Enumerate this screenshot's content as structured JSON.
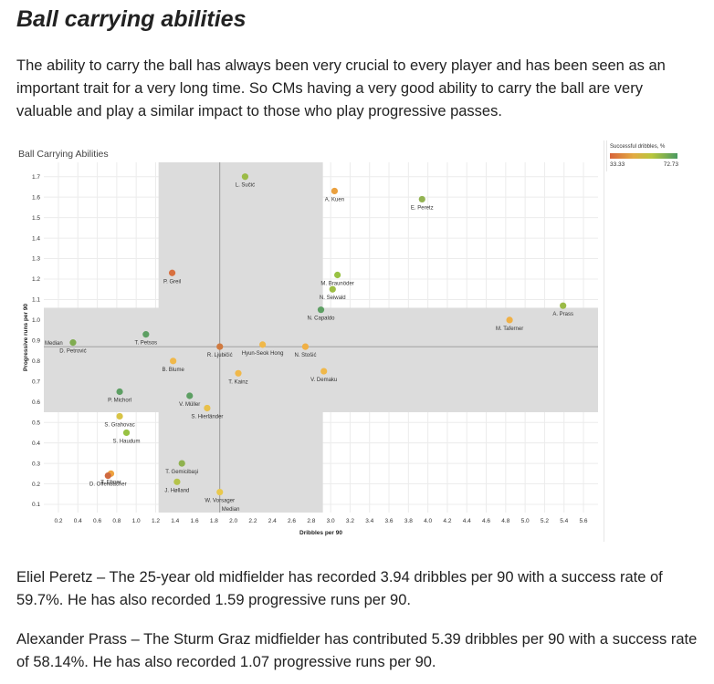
{
  "article": {
    "heading": "Ball carrying abilities",
    "intro": "The ability to carry the ball has always been very crucial to every player and has been seen as an important trait for a very long time. So CMs having a very good ability to carry the ball are very valuable and play a similar impact to those who play progressive passes.",
    "paragraphs": [
      "Eliel Peretz – The 25-year old midfielder has recorded 3.94 dribbles per 90 with a success rate of 59.7%. He has also recorded 1.59 progressive runs per 90.",
      "Alexander Prass – The Sturm Graz midfielder has contributed 5.39 dribbles per 90 with a success rate of 58.14%. He has also recorded 1.07 progressive runs per 90."
    ]
  },
  "legend": {
    "title": "Successful dribbles, %",
    "min_label": "33.33",
    "max_label": "72.73"
  },
  "colors": {
    "low": "#d8643a",
    "mid_low": "#e3ab42",
    "mid_high": "#b8c63d",
    "high": "#4a9a62",
    "band": "#dcdcdc",
    "grid": "#ececec"
  },
  "chart_data": {
    "type": "scatter",
    "title": "Ball Carrying Abilities",
    "xlabel": "Dribbles per 90",
    "ylabel": "Progressive runs per 90",
    "xlim": [
      0.05,
      5.75
    ],
    "ylim": [
      0.06,
      1.77
    ],
    "xticks": [
      0.2,
      0.4,
      0.6,
      0.8,
      1.0,
      1.2,
      1.4,
      1.6,
      1.8,
      2.0,
      2.2,
      2.4,
      2.6,
      2.8,
      3.0,
      3.2,
      3.4,
      3.6,
      3.8,
      4.0,
      4.2,
      4.4,
      4.6,
      4.8,
      5.0,
      5.2,
      5.4,
      5.6
    ],
    "yticks": [
      0.1,
      0.2,
      0.3,
      0.4,
      0.5,
      0.6,
      0.7,
      0.8,
      0.9,
      1.0,
      1.1,
      1.2,
      1.3,
      1.4,
      1.5,
      1.6,
      1.7
    ],
    "median_x": 1.86,
    "median_y": 0.87,
    "median_x_label": "Median",
    "median_y_label": "Median",
    "x_band": [
      1.23,
      2.92
    ],
    "y_band": [
      0.55,
      1.06
    ],
    "grid": true,
    "legend_position": "top-right",
    "points": [
      {
        "label": "L. Sučić",
        "x": 2.12,
        "y": 1.7,
        "success_pct": 62,
        "color": "#9bbb47"
      },
      {
        "label": "A. Kuen",
        "x": 3.04,
        "y": 1.63,
        "success_pct": 50,
        "color": "#eaa03e"
      },
      {
        "label": "E. Peretz",
        "x": 3.94,
        "y": 1.59,
        "success_pct": 59.7,
        "color": "#93b352"
      },
      {
        "label": "M. Braunöder",
        "x": 3.07,
        "y": 1.22,
        "success_pct": 62,
        "color": "#98c243"
      },
      {
        "label": "P. Greil",
        "x": 1.37,
        "y": 1.23,
        "success_pct": 40,
        "color": "#d8703f"
      },
      {
        "label": "N. Seiwald",
        "x": 3.02,
        "y": 1.15,
        "success_pct": 62,
        "color": "#9ebe45"
      },
      {
        "label": "N. Capaldo",
        "x": 2.9,
        "y": 1.05,
        "success_pct": 70,
        "color": "#5d9f63"
      },
      {
        "label": "A. Prass",
        "x": 5.39,
        "y": 1.07,
        "success_pct": 58.14,
        "color": "#9bbb47"
      },
      {
        "label": "M. Taferner",
        "x": 4.84,
        "y": 1.0,
        "success_pct": 50,
        "color": "#f0b045"
      },
      {
        "label": "D. Petrović",
        "x": 0.35,
        "y": 0.89,
        "success_pct": 66,
        "color": "#80ac50"
      },
      {
        "label": "T. Petsos",
        "x": 1.1,
        "y": 0.93,
        "success_pct": 70,
        "color": "#5d9f63"
      },
      {
        "label": "R. Ljubičić",
        "x": 1.86,
        "y": 0.87,
        "success_pct": 38,
        "color": "#d07a40"
      },
      {
        "label": "Hyun-Seok Hong",
        "x": 2.3,
        "y": 0.88,
        "success_pct": 52,
        "color": "#f0b84a"
      },
      {
        "label": "N. Stošić",
        "x": 2.74,
        "y": 0.87,
        "success_pct": 50,
        "color": "#f0b045"
      },
      {
        "label": "B. Blume",
        "x": 1.38,
        "y": 0.8,
        "success_pct": 52,
        "color": "#f0b84a"
      },
      {
        "label": "T. Kainz",
        "x": 2.05,
        "y": 0.74,
        "success_pct": 52,
        "color": "#f0b84a"
      },
      {
        "label": "V. Demaku",
        "x": 2.93,
        "y": 0.75,
        "success_pct": 52,
        "color": "#f0b84a"
      },
      {
        "label": "P. Michorl",
        "x": 0.83,
        "y": 0.65,
        "success_pct": 70,
        "color": "#5d9f63"
      },
      {
        "label": "V. Müller",
        "x": 1.55,
        "y": 0.63,
        "success_pct": 70,
        "color": "#5d9f63"
      },
      {
        "label": "S. Hierländer",
        "x": 1.73,
        "y": 0.57,
        "success_pct": 54,
        "color": "#e8c04a"
      },
      {
        "label": "S. Grahovac",
        "x": 0.83,
        "y": 0.53,
        "success_pct": 56,
        "color": "#d8c446"
      },
      {
        "label": "S. Haudum",
        "x": 0.9,
        "y": 0.45,
        "success_pct": 62,
        "color": "#98c243"
      },
      {
        "label": "T. Gemicibaşi",
        "x": 1.47,
        "y": 0.3,
        "success_pct": 64,
        "color": "#8fb24f"
      },
      {
        "label": "T. Ebner",
        "x": 0.74,
        "y": 0.25,
        "success_pct": 48,
        "color": "#eea23f"
      },
      {
        "label": "D. Offenbacher",
        "x": 0.71,
        "y": 0.24,
        "success_pct": 38,
        "color": "#cf6a40"
      },
      {
        "label": "J. Hølland",
        "x": 1.42,
        "y": 0.21,
        "success_pct": 60,
        "color": "#b5c34a"
      },
      {
        "label": "W. Vorsager",
        "x": 1.86,
        "y": 0.16,
        "success_pct": 55,
        "color": "#e9c84c"
      }
    ]
  }
}
